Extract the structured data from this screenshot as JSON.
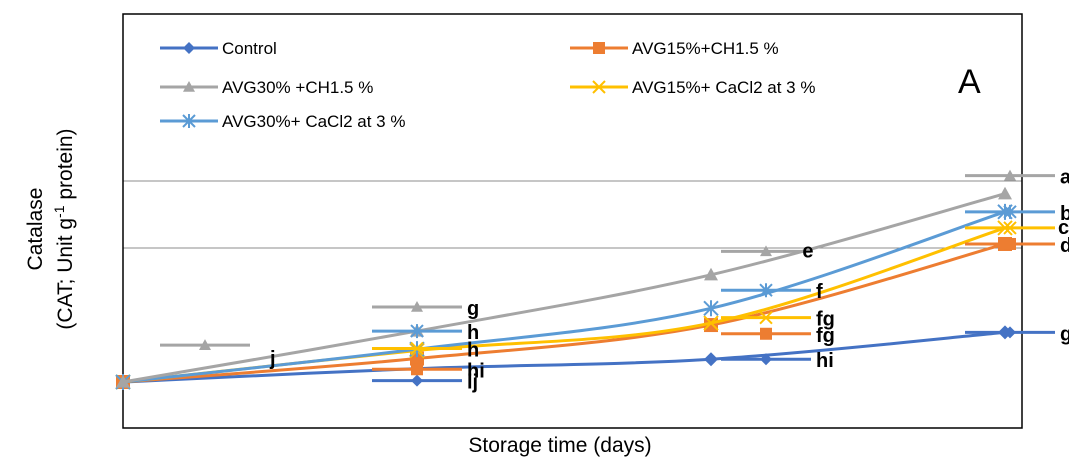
{
  "chart_data": {
    "type": "line",
    "title": "",
    "panel_label": "A",
    "xlabel": "Storage time (days)",
    "ylabel_line1": "Catalase",
    "ylabel_line2_pre": "(CAT; Unit g",
    "ylabel_sup": "-1",
    "ylabel_line2_post": " protein)",
    "x": [
      0,
      1,
      2,
      3
    ],
    "ylim": [
      0,
      4
    ],
    "grid": "horizontal",
    "legend_position": "top-left",
    "series": [
      {
        "name": "Control",
        "color": "#4472C4",
        "marker": "diamond",
        "values": [
          0.0,
          0.2,
          0.34,
          0.74
        ],
        "letters": [
          "",
          "ij",
          "hi",
          "g"
        ],
        "letter_marks": [
          null,
          0.02,
          0.34,
          0.74
        ]
      },
      {
        "name": "AVG15%+CH1.5 %",
        "color": "#ED7D31",
        "marker": "square",
        "values": [
          0.0,
          0.35,
          0.85,
          2.06
        ],
        "letters": [
          "",
          "hi",
          "fg",
          "d"
        ],
        "letter_marks": [
          null,
          0.19,
          0.72,
          2.06
        ]
      },
      {
        "name": "AVG30% +CH1.5 %",
        "color": "#A5A5A5",
        "marker": "triangle",
        "values": [
          0.0,
          0.76,
          1.6,
          2.81
        ],
        "letters": [
          "j",
          "g",
          "",
          "a"
        ],
        "letter_marks": [
          0.55,
          1.12,
          1.95,
          3.08
        ]
      },
      {
        "name": "AVG15%+ CaCl2  at 3 %",
        "color": "#FFC000",
        "marker": "x",
        "values": [
          0.0,
          0.47,
          0.88,
          2.3
        ],
        "letters": [
          "",
          "h",
          "fg",
          ""
        ],
        "letter_marks": [
          null,
          0.5,
          0.96,
          2.3
        ]
      },
      {
        "name": "AVG30%+  CaCl2  at 3 %",
        "color": "#5B9BD5",
        "marker": "star",
        "values": [
          0.0,
          0.49,
          1.1,
          2.54
        ],
        "letters": [
          "",
          "h",
          "f",
          "b"
        ],
        "letter_marks": [
          null,
          0.76,
          1.37,
          2.54
        ]
      }
    ],
    "standalone_letters": [
      {
        "text": "e",
        "x": 2.1,
        "y": 1.95
      },
      {
        "text": "c",
        "x": 3.0,
        "y": 2.3
      }
    ]
  },
  "letter_colors": {
    "default": "#000000",
    "highlight": "#FF0000"
  }
}
